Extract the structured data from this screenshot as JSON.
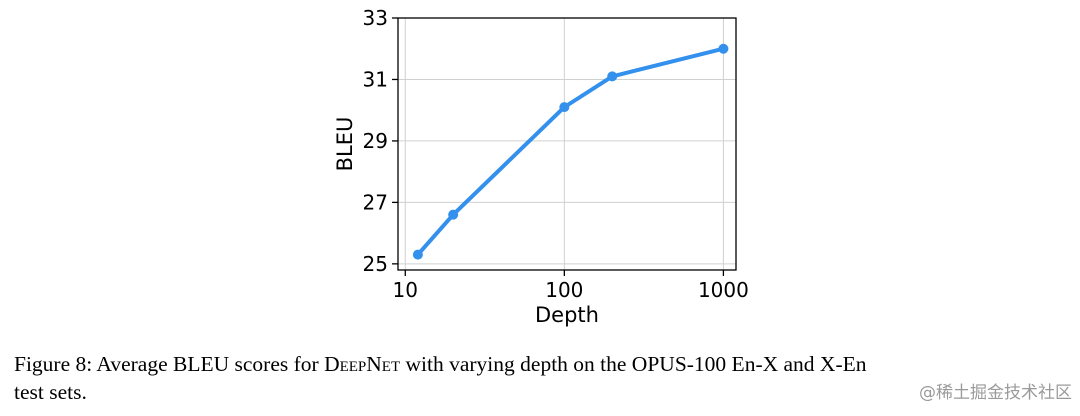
{
  "chart_data": {
    "type": "line",
    "xlabel": "Depth",
    "ylabel": "BLEU",
    "x_scale": "log",
    "xlim": [
      9,
      1200
    ],
    "ylim": [
      24.8,
      33
    ],
    "x_ticks": [
      10,
      100,
      1000
    ],
    "x_tick_labels": [
      "10",
      "100",
      "1000"
    ],
    "y_ticks": [
      25,
      27,
      29,
      31,
      33
    ],
    "y_tick_labels": [
      "25",
      "27",
      "29",
      "31",
      "33"
    ],
    "grid": true,
    "color": "#3390ec",
    "series": [
      {
        "x": [
          12,
          20,
          100,
          200,
          1000
        ],
        "values": [
          25.3,
          26.6,
          30.1,
          31.1,
          32.0
        ]
      }
    ]
  },
  "caption": {
    "prefix": "Figure 8: Average BLEU scores for",
    "model_name": "DeepNet",
    "suffix_line1": "with varying depth on the OPUS-100 En-X and X-En",
    "line2": "test sets."
  },
  "watermark": "@稀土掘金技术社区"
}
